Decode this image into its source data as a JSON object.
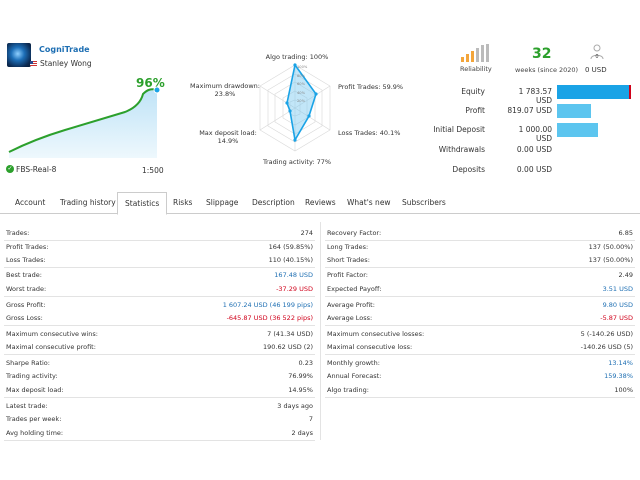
{
  "profile": {
    "name": "CogniTrade",
    "owner": "Stanley Wong",
    "growth": "96%",
    "server": "FBS-Real-8",
    "leverage": "1:500"
  },
  "radar": {
    "algo": "Algo trading: 100%",
    "profit": "Profit Trades: 59.9%",
    "loss": "Loss Trades: 40.1%",
    "activity": "Trading activity: 77%",
    "deposit_load": [
      "Max deposit load:",
      "14.9%"
    ],
    "drawdown": [
      "Maximum drawdown:",
      "23.8%"
    ],
    "scale": [
      "100%",
      "80%",
      "60%",
      "40%",
      "20%"
    ]
  },
  "header_stats": {
    "reliability_label": "Reliability",
    "weeks": "32",
    "weeks_label": "weeks (since 2020)",
    "subscribers_count": "0",
    "subscribers_value": "0 USD"
  },
  "balance": [
    {
      "label": "Equity",
      "value": "1 783.57 USD",
      "fraction": 1.0
    },
    {
      "label": "Profit",
      "value": "819.07 USD",
      "fraction": 0.46
    },
    {
      "label": "Initial Deposit",
      "value": "1 000.00 USD",
      "fraction": 0.56
    },
    {
      "label": "Withdrawals",
      "value": "0.00 USD",
      "fraction": 0
    },
    {
      "label": "Deposits",
      "value": "0.00 USD",
      "fraction": 0
    }
  ],
  "tabs": [
    "Account",
    "Trading history",
    "Statistics",
    "Risks",
    "Slippage",
    "Description",
    "Reviews",
    "What's new",
    "Subscribers"
  ],
  "active_tab": "Statistics",
  "stats_left": [
    {
      "k": "Trades:",
      "v": "274"
    },
    {
      "k": "Profit Trades:",
      "v": "164 (59.85%)"
    },
    {
      "k": "Loss Trades:",
      "v": "110 (40.15%)"
    },
    {
      "k": "Best trade:",
      "v": "167.48 USD",
      "color": "blue"
    },
    {
      "k": "Worst trade:",
      "v": "-37.29 USD",
      "color": "red"
    },
    {
      "k": "Gross Profit:",
      "v": "1 607.24 USD (46 199 pips)",
      "color": "blue"
    },
    {
      "k": "Gross Loss:",
      "v": "-645.87 USD (36 522 pips)",
      "color": "red"
    },
    {
      "k": "Maximum consecutive wins:",
      "v": "7 (41.34 USD)"
    },
    {
      "k": "Maximal consecutive profit:",
      "v": "190.62 USD (2)"
    },
    {
      "k": "Sharpe Ratio:",
      "v": "0.23"
    },
    {
      "k": "Trading activity:",
      "v": "76.99%"
    },
    {
      "k": "Max deposit load:",
      "v": "14.95%"
    },
    {
      "k": "Latest trade:",
      "v": "3 days ago"
    },
    {
      "k": "Trades per week:",
      "v": "7"
    },
    {
      "k": "Avg holding time:",
      "v": "2 days"
    }
  ],
  "stats_right": [
    {
      "k": "Recovery Factor:",
      "v": "6.85"
    },
    {
      "k": "Long Trades:",
      "v": "137 (50.00%)"
    },
    {
      "k": "Short Trades:",
      "v": "137 (50.00%)"
    },
    {
      "k": "Profit Factor:",
      "v": "2.49"
    },
    {
      "k": "Expected Payoff:",
      "v": "3.51 USD",
      "color": "blue"
    },
    {
      "k": "Average Profit:",
      "v": "9.80 USD",
      "color": "blue"
    },
    {
      "k": "Average Loss:",
      "v": "-5.87 USD",
      "color": "red"
    },
    {
      "k": "Maximum consecutive losses:",
      "v": "5 (-140.26 USD)"
    },
    {
      "k": "Maximal consecutive loss:",
      "v": "-140.26 USD (5)"
    },
    {
      "k": "Monthly growth:",
      "v": "13.14%",
      "color": "blue"
    },
    {
      "k": "Annual Forecast:",
      "v": "159.38%",
      "color": "blue"
    },
    {
      "k": "Algo trading:",
      "v": "100%"
    }
  ],
  "colors": {
    "accent": "#1e6fb3",
    "growth": "#2ca02c",
    "loss": "#d0021b",
    "bar": "#5cc5ef"
  }
}
